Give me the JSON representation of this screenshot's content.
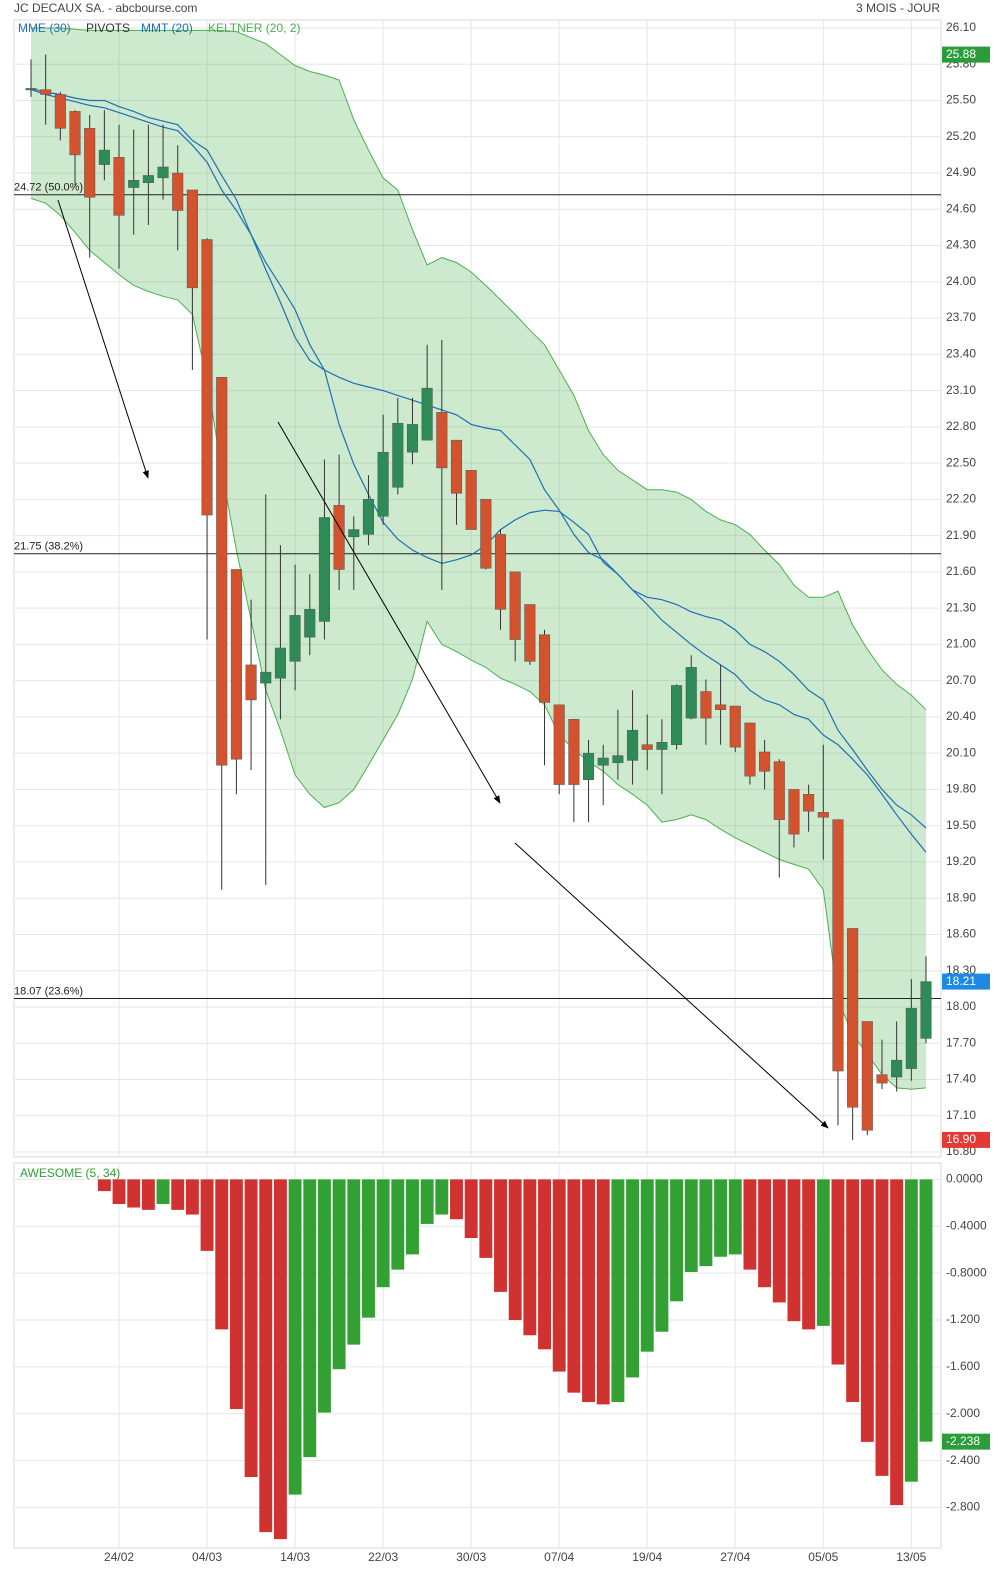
{
  "chart_data": [
    {
      "type": "candlestick",
      "title": "JC DECAUX SA. - abcbourse.com",
      "subtitle": "3 MOIS - JOUR",
      "categories": [
        null,
        null,
        null,
        null,
        null,
        null,
        "24/02",
        null,
        null,
        null,
        null,
        null,
        "04/03",
        null,
        null,
        null,
        null,
        null,
        "14/03",
        null,
        null,
        null,
        null,
        null,
        "22/03",
        null,
        null,
        null,
        null,
        null,
        "30/03",
        null,
        null,
        null,
        null,
        null,
        "07/04",
        null,
        null,
        null,
        null,
        null,
        "19/04",
        null,
        null,
        null,
        null,
        null,
        "27/04",
        null,
        null,
        null,
        null,
        null,
        "05/05",
        null,
        null,
        null,
        null,
        null,
        "13/05",
        null
      ],
      "open": [
        25.6,
        25.59,
        25.55,
        25.41,
        25.27,
        24.97,
        25.03,
        24.78,
        24.82,
        24.86,
        24.9,
        24.76,
        24.35,
        23.21,
        21.62,
        20.83,
        20.68,
        20.72,
        20.86,
        21.06,
        21.19,
        22.15,
        21.89,
        21.91,
        22.06,
        22.3,
        22.59,
        22.69,
        22.92,
        22.69,
        22.44,
        22.2,
        21.91,
        21.6,
        21.33,
        21.08,
        20.5,
        20.38,
        19.88,
        20.0,
        20.02,
        20.04,
        20.17,
        20.13,
        20.17,
        20.39,
        20.61,
        20.5,
        20.49,
        20.35,
        20.11,
        20.03,
        19.8,
        19.76,
        19.61,
        19.55,
        18.65,
        17.88,
        17.44,
        17.42,
        17.49,
        17.74
      ],
      "high": [
        25.84,
        25.88,
        25.57,
        25.42,
        25.38,
        25.42,
        25.3,
        25.26,
        25.3,
        25.3,
        25.13,
        24.76,
        24.36,
        23.21,
        21.62,
        21.37,
        22.24,
        21.82,
        21.66,
        21.58,
        22.53,
        22.57,
        22.06,
        22.4,
        22.9,
        23.04,
        23.04,
        23.48,
        23.52,
        22.69,
        22.44,
        22.2,
        21.95,
        21.6,
        21.33,
        21.12,
        20.5,
        20.38,
        20.21,
        20.17,
        20.46,
        20.62,
        20.42,
        20.38,
        20.67,
        20.91,
        20.71,
        20.83,
        20.49,
        20.35,
        20.21,
        20.05,
        19.8,
        19.84,
        20.17,
        19.55,
        18.65,
        17.88,
        17.73,
        17.88,
        18.23,
        18.42
      ],
      "low": [
        25.53,
        25.3,
        25.17,
        24.8,
        24.2,
        24.84,
        24.11,
        24.39,
        24.47,
        24.68,
        24.26,
        23.27,
        21.04,
        18.97,
        19.76,
        19.96,
        19.01,
        20.38,
        20.62,
        20.91,
        21.04,
        21.45,
        21.45,
        21.82,
        21.99,
        22.24,
        22.49,
        22.69,
        21.45,
        21.99,
        21.95,
        21.62,
        21.12,
        20.86,
        20.83,
        20.0,
        19.76,
        19.53,
        19.53,
        19.67,
        19.88,
        19.84,
        19.96,
        19.76,
        20.13,
        20.38,
        20.17,
        20.17,
        20.11,
        19.84,
        19.8,
        19.07,
        19.32,
        19.45,
        19.22,
        17.02,
        16.9,
        16.94,
        17.32,
        17.3,
        17.39,
        17.7
      ],
      "close": [
        25.6,
        25.55,
        25.27,
        25.05,
        24.7,
        25.09,
        24.55,
        24.84,
        24.88,
        24.95,
        24.59,
        23.95,
        22.07,
        20.0,
        20.05,
        20.54,
        20.77,
        20.97,
        21.24,
        21.29,
        22.05,
        21.62,
        21.95,
        22.2,
        22.59,
        22.83,
        22.82,
        23.12,
        22.46,
        22.25,
        21.95,
        21.63,
        21.29,
        21.04,
        20.86,
        20.52,
        19.84,
        19.84,
        20.1,
        20.06,
        20.08,
        20.29,
        20.13,
        20.19,
        20.66,
        20.81,
        20.39,
        20.46,
        20.15,
        19.91,
        19.95,
        19.55,
        19.43,
        19.62,
        19.57,
        17.47,
        17.17,
        16.98,
        17.37,
        17.56,
        17.99,
        18.21
      ],
      "up_color": "#2e8b57",
      "down_color": "#d4532f",
      "series": [
        {
          "name": "MME (30)",
          "color": "#1f6fb5",
          "values": [
            25.6,
            25.57,
            25.55,
            25.52,
            25.5,
            25.5,
            25.45,
            25.41,
            25.36,
            25.33,
            25.3,
            25.17,
            25.09,
            24.88,
            24.68,
            24.39,
            24.1,
            23.83,
            23.54,
            23.35,
            23.27,
            23.21,
            23.16,
            23.13,
            23.1,
            23.06,
            23.02,
            22.98,
            22.94,
            22.9,
            22.82,
            22.79,
            22.77,
            22.65,
            22.53,
            22.28,
            22.11,
            21.91,
            21.76,
            21.7,
            21.58,
            21.45,
            21.39,
            21.37,
            21.33,
            21.27,
            21.23,
            21.2,
            21.12,
            21.0,
            20.94,
            20.86,
            20.75,
            20.62,
            20.54,
            20.29,
            20.13,
            19.96,
            19.8,
            19.67,
            19.59,
            19.48
          ]
        },
        {
          "name": "MMT (20)",
          "color": "#1f6fb5",
          "values": [
            25.59,
            25.55,
            25.52,
            25.49,
            25.46,
            25.44,
            25.4,
            25.36,
            25.32,
            25.28,
            25.25,
            25.13,
            24.99,
            24.76,
            24.59,
            24.39,
            24.16,
            23.97,
            23.77,
            23.48,
            23.27,
            22.82,
            22.49,
            22.24,
            22.01,
            21.87,
            21.78,
            21.72,
            21.67,
            21.7,
            21.74,
            21.82,
            21.95,
            22.03,
            22.09,
            22.11,
            22.1,
            22.01,
            21.91,
            21.68,
            21.58,
            21.45,
            21.33,
            21.2,
            21.1,
            21.0,
            20.91,
            20.83,
            20.75,
            20.62,
            20.54,
            20.5,
            20.42,
            20.38,
            20.25,
            20.17,
            20.05,
            19.92,
            19.76,
            19.59,
            19.43,
            19.28
          ]
        }
      ],
      "keltner": {
        "name": "KELTNER (20, 2)",
        "color": "#4caf50",
        "upper": [
          26.1,
          26.1,
          26.1,
          26.09,
          26.08,
          26.08,
          26.08,
          26.08,
          26.08,
          26.08,
          26.08,
          26.08,
          26.08,
          26.08,
          26.07,
          26.02,
          25.97,
          25.88,
          25.79,
          25.74,
          25.71,
          25.67,
          25.34,
          25.09,
          24.86,
          24.76,
          24.43,
          24.14,
          24.2,
          24.16,
          24.08,
          23.97,
          23.85,
          23.73,
          23.6,
          23.48,
          23.27,
          23.06,
          22.77,
          22.57,
          22.44,
          22.36,
          22.28,
          22.28,
          22.26,
          22.2,
          22.1,
          22.03,
          21.99,
          21.91,
          21.78,
          21.66,
          21.49,
          21.39,
          21.39,
          21.44,
          21.16,
          20.96,
          20.79,
          20.67,
          20.58,
          20.46
        ],
        "lower": [
          24.69,
          24.65,
          24.55,
          24.41,
          24.26,
          24.16,
          24.06,
          23.97,
          23.92,
          23.88,
          23.85,
          23.73,
          23.19,
          22.44,
          21.78,
          21.2,
          20.62,
          20.29,
          19.92,
          19.76,
          19.65,
          19.69,
          19.8,
          20.0,
          20.21,
          20.42,
          20.71,
          21.19,
          21.0,
          20.94,
          20.87,
          20.81,
          20.72,
          20.67,
          20.61,
          20.5,
          20.25,
          20.13,
          20.03,
          19.95,
          19.84,
          19.76,
          19.67,
          19.53,
          19.55,
          19.59,
          19.55,
          19.47,
          19.4,
          19.34,
          19.28,
          19.22,
          19.18,
          19.14,
          18.97,
          18.06,
          17.77,
          17.61,
          17.44,
          17.33,
          17.32,
          17.33
        ]
      },
      "pivots": {
        "name": "PIVOTS",
        "color": "#222222",
        "levels": [
          {
            "value": 24.72,
            "label": "24.72  (50.0%)"
          },
          {
            "value": 21.75,
            "label": "21.75  (38.2%)"
          },
          {
            "value": 18.07,
            "label": "18.07  (23.6%)"
          }
        ]
      },
      "price_markers": [
        {
          "value": 25.88,
          "color": "#2a9d3a"
        },
        {
          "value": 18.21,
          "color": "#1e88e5"
        },
        {
          "value": 16.9,
          "label": "16.90",
          "color": "#e53935"
        }
      ],
      "ylim": [
        16.8,
        26.1
      ],
      "yticks": [
        {
          "value": 16.8,
          "label": "16.80"
        },
        {
          "value": 17.1,
          "label": "17.10"
        },
        {
          "value": 17.4,
          "label": "17.40"
        },
        {
          "value": 17.7,
          "label": "17.70"
        },
        {
          "value": 18,
          "label": "18.00"
        },
        {
          "value": 18.3,
          "label": "18.30"
        },
        {
          "value": 18.6,
          "label": "18.60"
        },
        {
          "value": 18.9,
          "label": "18.90"
        },
        {
          "value": 19.2,
          "label": "19.20"
        },
        {
          "value": 19.5,
          "label": "19.50"
        },
        {
          "value": 19.8,
          "label": "19.80"
        },
        {
          "value": 20.1,
          "label": "20.10"
        },
        {
          "value": 20.4,
          "label": "20.40"
        },
        {
          "value": 20.7,
          "label": "20.70"
        },
        {
          "value": 21,
          "label": "21.00"
        },
        {
          "value": 21.3,
          "label": "21.30"
        },
        {
          "value": 21.6,
          "label": "21.60"
        },
        {
          "value": 21.9,
          "label": "21.90"
        },
        {
          "value": 22.2,
          "label": "22.20"
        },
        {
          "value": 22.5,
          "label": "22.50"
        },
        {
          "value": 22.8,
          "label": "22.80"
        },
        {
          "value": 23.1,
          "label": "23.10"
        },
        {
          "value": 23.4,
          "label": "23.40"
        },
        {
          "value": 23.7,
          "label": "23.70"
        },
        {
          "value": 24,
          "label": "24.00"
        },
        {
          "value": 24.3,
          "label": "24.30"
        },
        {
          "value": 24.6,
          "label": "24.60"
        },
        {
          "value": 24.9,
          "label": "24.90"
        },
        {
          "value": 25.2,
          "label": "25.20"
        },
        {
          "value": 25.5,
          "label": "25.50"
        },
        {
          "value": 25.8,
          "label": "25.80"
        },
        {
          "value": 26.1,
          "label": "26.10"
        }
      ],
      "grid": true
    },
    {
      "type": "bar",
      "title": "AWESOME (5, 34)",
      "values": [
        null,
        null,
        null,
        null,
        null,
        -0.1,
        -0.21,
        -0.24,
        -0.26,
        -0.21,
        -0.26,
        -0.3,
        -0.61,
        -1.28,
        -1.96,
        -2.54,
        -3.01,
        -3.07,
        -2.69,
        -2.37,
        -1.99,
        -1.62,
        -1.41,
        -1.18,
        -0.92,
        -0.77,
        -0.64,
        -0.38,
        -0.3,
        -0.34,
        -0.5,
        -0.67,
        -0.96,
        -1.2,
        -1.33,
        -1.45,
        -1.64,
        -1.82,
        -1.9,
        -1.92,
        -1.9,
        -1.69,
        -1.47,
        -1.3,
        -1.04,
        -0.79,
        -0.74,
        -0.66,
        -0.64,
        -0.77,
        -0.92,
        -1.05,
        -1.21,
        -1.28,
        -1.25,
        -1.58,
        -1.9,
        -2.24,
        -2.53,
        -2.78,
        -2.58,
        -2.238
      ],
      "up_color": "#32a033",
      "down_color": "#d03232",
      "title_color": "#32a033",
      "marker": {
        "value": -2.238,
        "color": "#2a9d3a"
      },
      "ylim": [
        -3.12,
        0.14
      ],
      "yticks": [
        {
          "value": 0,
          "label": "0.0000"
        },
        {
          "value": -0.4,
          "label": "-0.4000"
        },
        {
          "value": -0.8,
          "label": "-0.8000"
        },
        {
          "value": -1.2,
          "label": "-1.200"
        },
        {
          "value": -1.6,
          "label": "-1.600"
        },
        {
          "value": -2,
          "label": "-2.000"
        },
        {
          "value": -2.4,
          "label": "-2.400"
        },
        {
          "value": -2.8,
          "label": "-2.800"
        }
      ],
      "grid": true
    }
  ]
}
